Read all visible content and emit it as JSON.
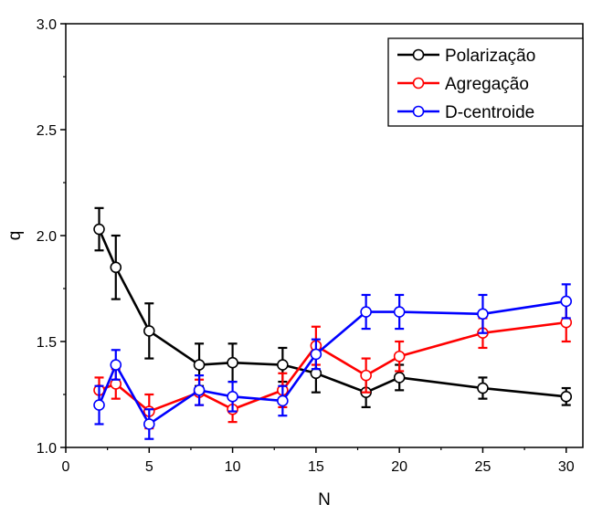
{
  "chart_data": {
    "type": "line",
    "title": "",
    "xlabel": "N",
    "ylabel": "q",
    "xlim": [
      0,
      31
    ],
    "ylim": [
      1.0,
      3.0
    ],
    "xticks": [
      0,
      5,
      10,
      15,
      20,
      25,
      30
    ],
    "yticks": [
      1.0,
      1.5,
      2.0,
      2.5,
      3.0
    ],
    "x_tick_labels": [
      "0",
      "5",
      "10",
      "15",
      "20",
      "25",
      "30"
    ],
    "y_tick_labels": [
      "1.0",
      "1.5",
      "2.0",
      "2.5",
      "3.0"
    ],
    "grid": false,
    "legend_position": "top-right",
    "series": [
      {
        "name": "Polarização",
        "color": "#000000",
        "x": [
          2,
          3,
          5,
          8,
          10,
          13,
          15,
          18,
          20,
          25,
          30
        ],
        "y": [
          2.03,
          1.85,
          1.55,
          1.39,
          1.4,
          1.39,
          1.35,
          1.26,
          1.33,
          1.28,
          1.24
        ],
        "err": [
          0.1,
          0.15,
          0.13,
          0.1,
          0.09,
          0.08,
          0.09,
          0.07,
          0.06,
          0.05,
          0.04
        ]
      },
      {
        "name": "Agregação",
        "color": "#ff0000",
        "x": [
          2,
          3,
          5,
          8,
          10,
          13,
          15,
          18,
          20,
          25,
          30
        ],
        "y": [
          1.27,
          1.3,
          1.17,
          1.26,
          1.18,
          1.27,
          1.48,
          1.34,
          1.43,
          1.54,
          1.59
        ],
        "err": [
          0.06,
          0.07,
          0.08,
          0.06,
          0.06,
          0.08,
          0.09,
          0.08,
          0.07,
          0.07,
          0.09
        ]
      },
      {
        "name": "D-centroide",
        "color": "#0000ff",
        "x": [
          2,
          3,
          5,
          8,
          10,
          13,
          15,
          18,
          20,
          25,
          30
        ],
        "y": [
          1.2,
          1.39,
          1.11,
          1.27,
          1.24,
          1.22,
          1.44,
          1.64,
          1.64,
          1.63,
          1.69
        ],
        "err": [
          0.09,
          0.07,
          0.07,
          0.07,
          0.07,
          0.07,
          0.07,
          0.08,
          0.08,
          0.09,
          0.08
        ]
      }
    ]
  }
}
